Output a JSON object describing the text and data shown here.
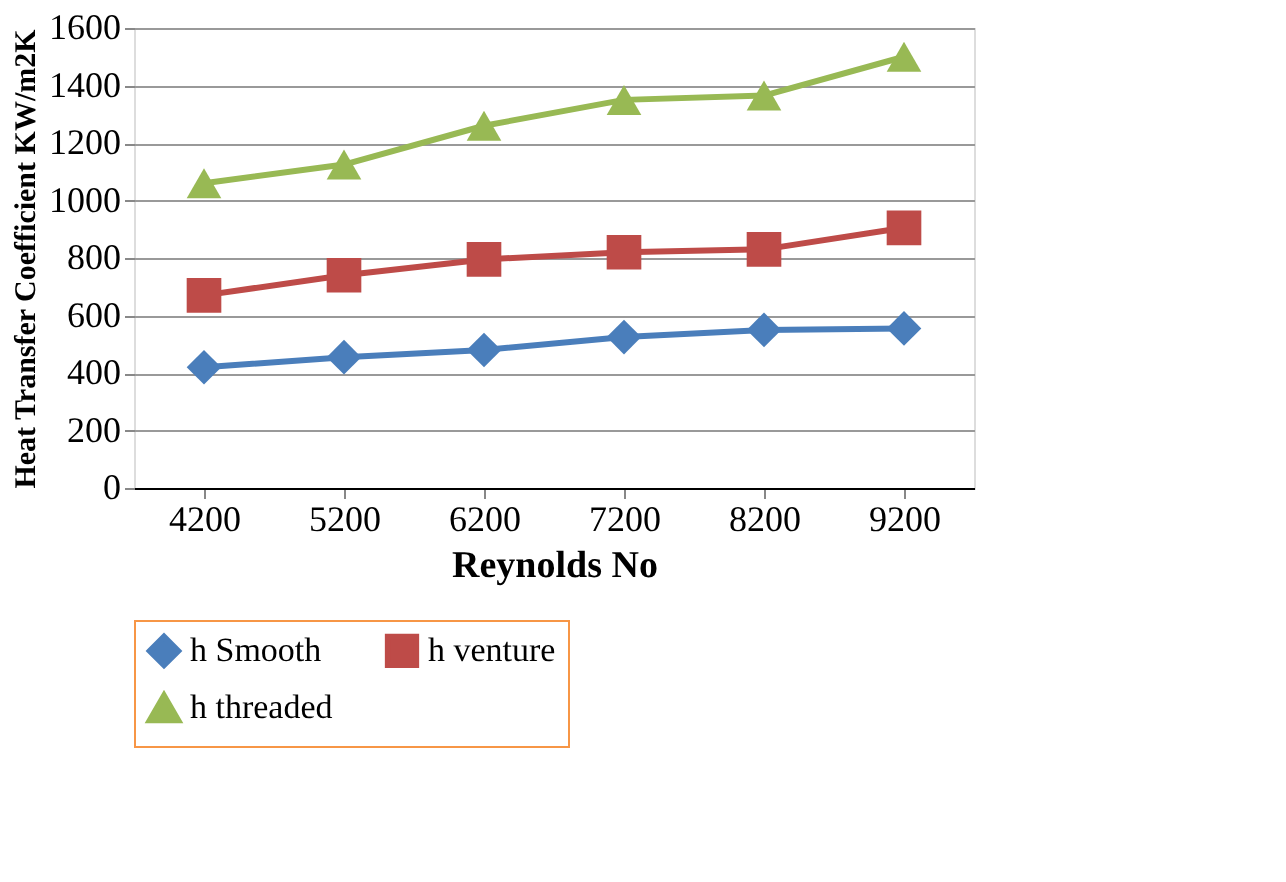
{
  "chart_data": {
    "type": "line",
    "xlabel": "Reynolds No",
    "ylabel": "Heat Transfer Coefficient KW/m2K",
    "categories": [
      "4200",
      "5200",
      "6200",
      "7200",
      "8200",
      "9200"
    ],
    "ylim": [
      0,
      1600
    ],
    "yticks": [
      0,
      200,
      400,
      600,
      800,
      1000,
      1200,
      1400,
      1600
    ],
    "grid": "y",
    "legend": "bottom",
    "series": [
      {
        "name": "h Smooth",
        "color": "#4a7ebb",
        "marker": "diamond",
        "values": [
          420,
          455,
          480,
          525,
          550,
          555
        ]
      },
      {
        "name": "h venture",
        "color": "#be4b48",
        "marker": "square",
        "values": [
          670,
          740,
          795,
          820,
          830,
          905
        ]
      },
      {
        "name": "h threaded",
        "color": "#98b954",
        "marker": "triangle",
        "values": [
          1060,
          1125,
          1260,
          1350,
          1365,
          1500
        ]
      }
    ]
  }
}
